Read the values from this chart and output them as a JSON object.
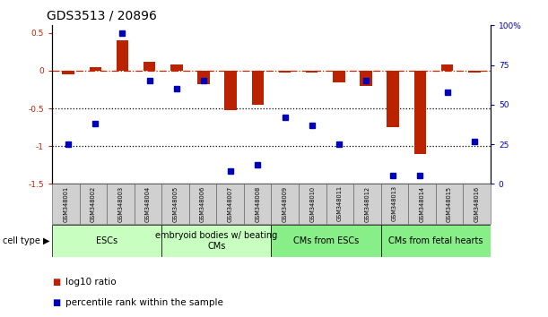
{
  "title": "GDS3513 / 20896",
  "samples": [
    "GSM348001",
    "GSM348002",
    "GSM348003",
    "GSM348004",
    "GSM348005",
    "GSM348006",
    "GSM348007",
    "GSM348008",
    "GSM348009",
    "GSM348010",
    "GSM348011",
    "GSM348012",
    "GSM348013",
    "GSM348014",
    "GSM348015",
    "GSM348016"
  ],
  "log10_ratio": [
    -0.05,
    0.05,
    0.4,
    0.12,
    0.08,
    -0.18,
    -0.52,
    -0.45,
    -0.02,
    -0.02,
    -0.15,
    -0.2,
    -0.75,
    -1.1,
    0.08,
    -0.02
  ],
  "percentile_rank": [
    25,
    38,
    95,
    65,
    60,
    65,
    8,
    12,
    42,
    37,
    25,
    65,
    5,
    5,
    58,
    27
  ],
  "ylim_left": [
    -1.5,
    0.6
  ],
  "ylim_right": [
    0,
    100
  ],
  "groups": [
    {
      "label": "ESCs",
      "start": 0,
      "end": 3,
      "color": "#c0ffc0"
    },
    {
      "label": "embryoid bodies w/ beating\nCMs",
      "start": 4,
      "end": 7,
      "color": "#c0ffc0"
    },
    {
      "label": "CMs from ESCs",
      "start": 8,
      "end": 11,
      "color": "#80ff80"
    },
    {
      "label": "CMs from fetal hearts",
      "start": 12,
      "end": 15,
      "color": "#80ff80"
    }
  ],
  "bar_color_red": "#bb2200",
  "bar_color_blue": "#0000bb",
  "hline_dashdot_color": "#cc2200",
  "dotted_line_color": "#000000",
  "title_fontsize": 10,
  "tick_fontsize": 6.5,
  "sample_fontsize": 4.8,
  "cell_fontsize": 7,
  "legend_fontsize": 7.5
}
